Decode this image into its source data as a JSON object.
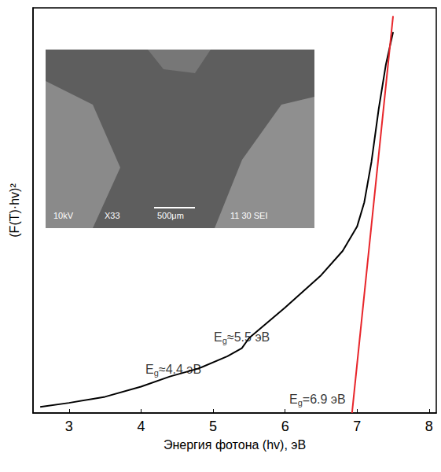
{
  "chart_data": {
    "type": "line",
    "x_label": "Энергия фотона (hv), эВ",
    "y_label": "(F(T)·hv)²",
    "xlim": [
      2.5,
      8.1
    ],
    "xticks": [
      3,
      4,
      5,
      6,
      7,
      8
    ],
    "ylim": [
      0,
      100
    ],
    "yticks": [],
    "tick_labels": "x",
    "grid": false,
    "series": [
      {
        "type": "line",
        "color": "#000000",
        "line_style": "solid",
        "x": [
          2.6,
          3.0,
          3.5,
          4.0,
          4.4,
          4.8,
          5.2,
          5.4,
          5.5,
          5.6,
          6.0,
          6.5,
          6.8,
          7.0,
          7.1,
          7.2,
          7.3,
          7.4,
          7.5
        ],
        "values": [
          1.5,
          2.5,
          4,
          6.5,
          9,
          11,
          14,
          16,
          18.5,
          20,
          26,
          34,
          40,
          46,
          52,
          62,
          75,
          86,
          94
        ]
      },
      {
        "type": "line",
        "color": "#e8262b",
        "line_style": "solid",
        "x": [
          6.93,
          7.5
        ],
        "values": [
          0,
          98
        ]
      }
    ],
    "annotations": [
      {
        "text": "E",
        "subscript": "g",
        "suffix": "≈4.4 эВ",
        "x": 4.45,
        "y": 8.5
      },
      {
        "text": "E",
        "subscript": "g",
        "suffix": "≈5.5 эВ",
        "x": 5.4,
        "y": 16.5
      },
      {
        "text": "E",
        "subscript": "g",
        "suffix": "=6.9 эВ",
        "x": 6.45,
        "y": 1
      }
    ],
    "inset": {
      "texts": [
        "10kV",
        "X33",
        "500μm",
        "11 30 SEI"
      ]
    }
  }
}
